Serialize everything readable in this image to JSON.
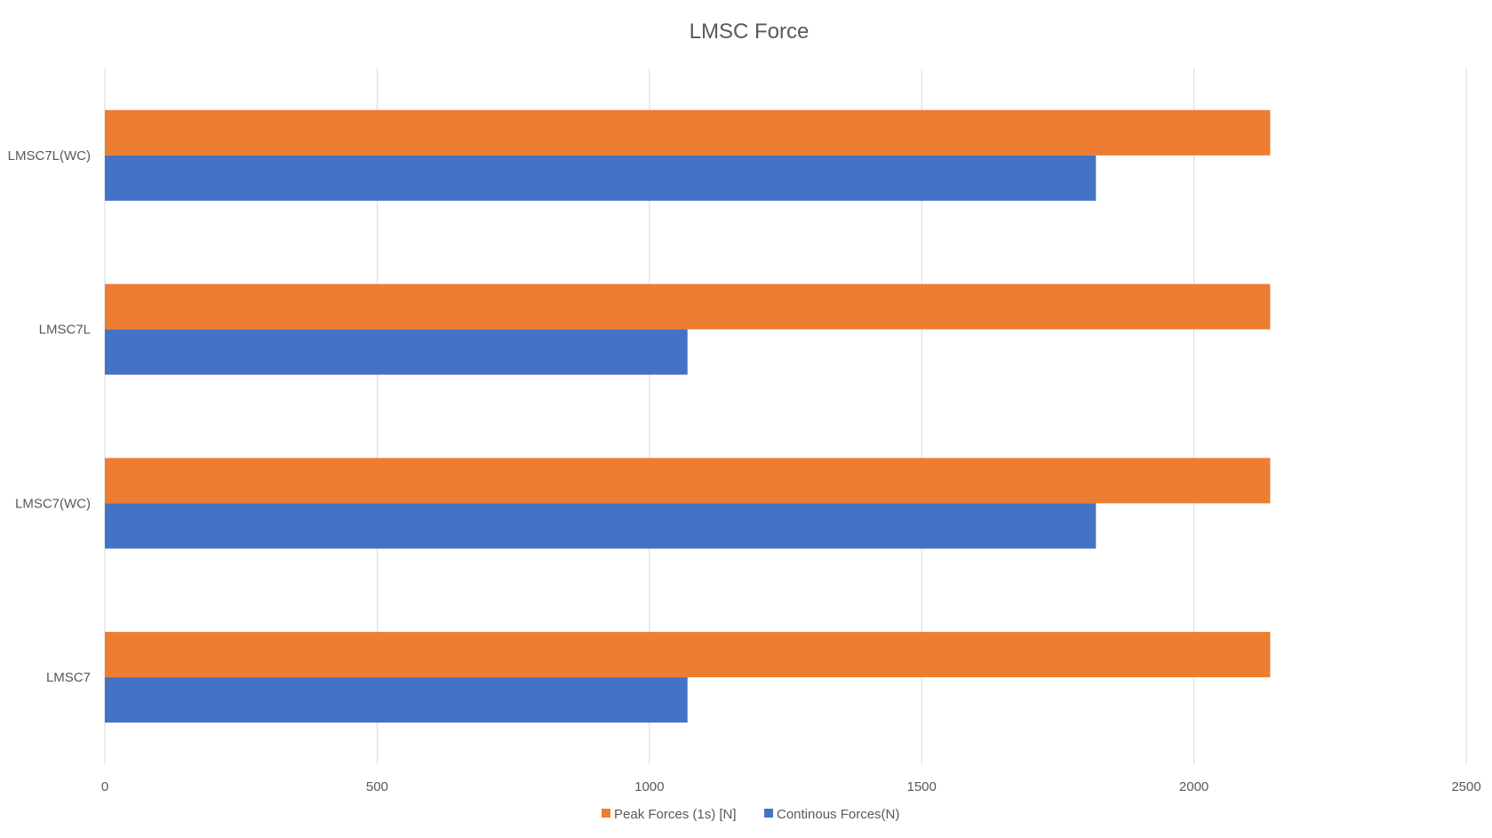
{
  "chart_data": {
    "type": "bar",
    "orientation": "horizontal",
    "title": "LMSC Force",
    "xlabel": "",
    "ylabel": "",
    "categories": [
      "LMSC7",
      "LMSC7(WC)",
      "LMSC7L",
      "LMSC7L(WC)"
    ],
    "series": [
      {
        "name": "Peak Forces (1s) [N]",
        "values": [
          2140,
          2140,
          2140,
          2140
        ],
        "color": "#ED7D31"
      },
      {
        "name": "Continous Forces(N)",
        "values": [
          1070,
          1820,
          1070,
          1820
        ],
        "color": "#4472C4"
      }
    ],
    "xlim": [
      0,
      2500
    ],
    "xticks": [
      0,
      500,
      1000,
      1500,
      2000,
      2500
    ],
    "grid": true,
    "legend_position": "bottom"
  }
}
